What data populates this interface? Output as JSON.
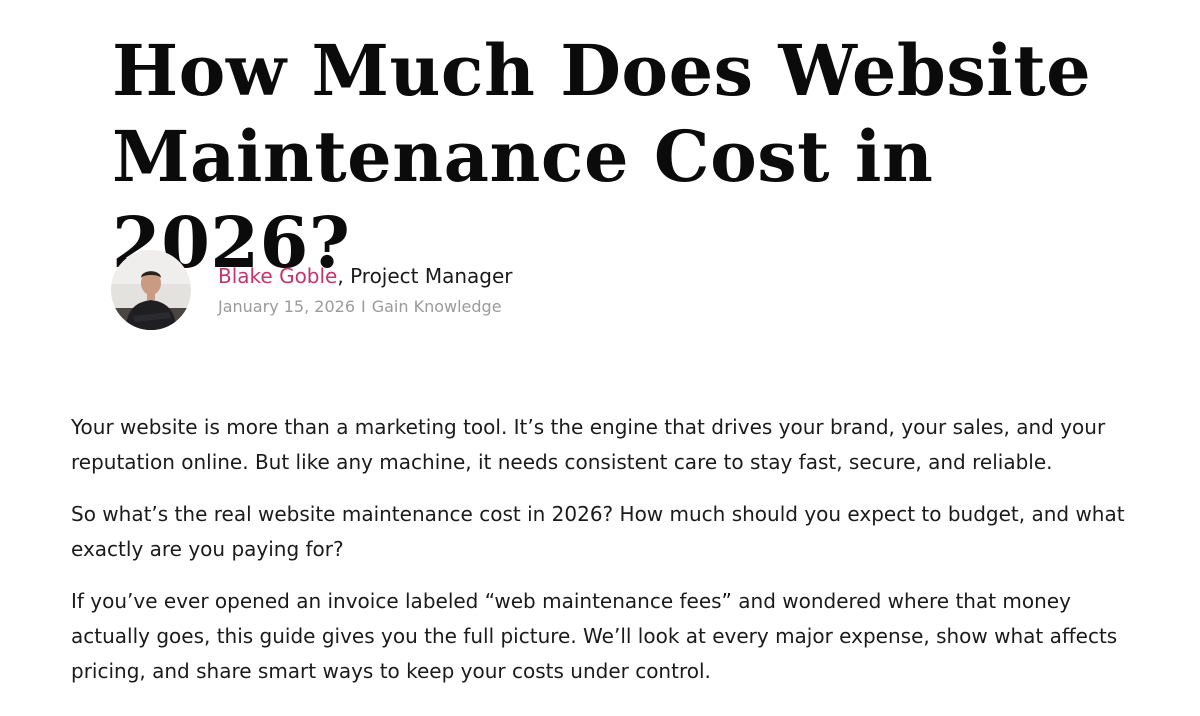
{
  "article": {
    "title": "How Much Does Website Maintenance Cost in 2026?",
    "author": {
      "name": "Blake Goble",
      "separator": ", ",
      "role": "Project Manager",
      "avatar_icon": "author-photo"
    },
    "meta": {
      "date": "January 15, 2026",
      "separator": "I",
      "category": "Gain Knowledge"
    },
    "paragraphs": [
      "Your website is more than a marketing tool. It’s the engine that drives your brand, your sales, and your reputation online. But like any machine, it needs consistent care to stay fast, secure, and reliable.",
      "So what’s the real website maintenance cost in 2026? How much should you expect to budget, and what exactly are you paying for?",
      "If you’ve ever opened an invoice labeled “web maintenance fees” and wondered where that money actually goes, this guide gives you the full picture. We’ll look at every major expense, show what affects pricing, and share smart ways to keep your costs under control."
    ]
  },
  "colors": {
    "accent": "#c8336e",
    "meta_text": "#9a9a9a",
    "body_text": "#1b1b1b",
    "title_text": "#0b0b0b"
  }
}
